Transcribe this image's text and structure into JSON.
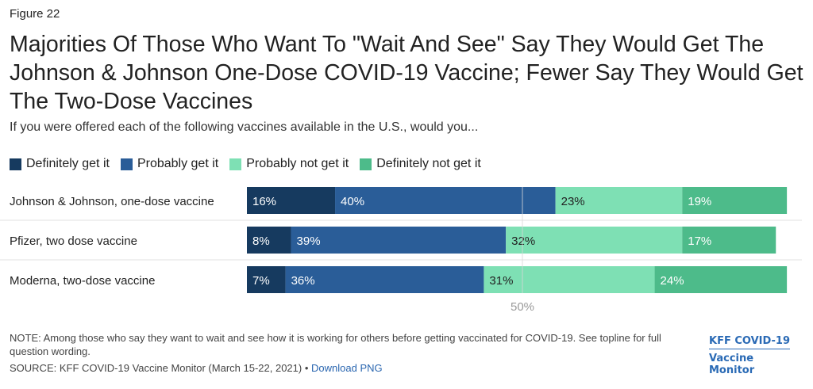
{
  "header": {
    "figure_label": "Figure 22",
    "title": "Majorities Of Those Who Want To \"Wait And See\" Say They Would Get The Johnson & Johnson One-Dose COVID-19 Vaccine; Fewer Say They Would Get The Two-Dose Vaccines",
    "subtitle": "If you were offered each of the following vaccines available in the U.S., would you..."
  },
  "legend": [
    {
      "label": "Definitely get it",
      "color": "#163a5f"
    },
    {
      "label": "Probably get it",
      "color": "#2a5d98"
    },
    {
      "label": "Probably not get it",
      "color": "#7ee0b4"
    },
    {
      "label": "Definitely not get it",
      "color": "#4dbb8a"
    }
  ],
  "chart_data": {
    "type": "bar",
    "orientation": "horizontal",
    "stacked": true,
    "categories": [
      "Johnson & Johnson, one-dose vaccine",
      "Pfizer, two dose vaccine",
      "Moderna, two-dose vaccine"
    ],
    "series": [
      {
        "name": "Definitely get it",
        "color": "#163a5f",
        "values": [
          16,
          8,
          7
        ]
      },
      {
        "name": "Probably get it",
        "color": "#2a5d98",
        "values": [
          40,
          39,
          36
        ]
      },
      {
        "name": "Probably not get it",
        "color": "#7ee0b4",
        "values": [
          23,
          32,
          31
        ]
      },
      {
        "name": "Definitely not get it",
        "color": "#4dbb8a",
        "values": [
          19,
          17,
          24
        ]
      }
    ],
    "value_suffix": "%",
    "reference_line": {
      "value": 50,
      "label": "50%"
    },
    "xlim": [
      0,
      100
    ]
  },
  "footer": {
    "note": "NOTE: Among those who say they want to wait and see how it is working for others before getting vaccinated for COVID-19. See topline for full question wording.",
    "source": "SOURCE: KFF COVID-19 Vaccine Monitor (March 15-22, 2021) •",
    "download_link": "Download PNG",
    "brand_line1": "KFF COVID-19",
    "brand_line2": "Vaccine Monitor"
  }
}
